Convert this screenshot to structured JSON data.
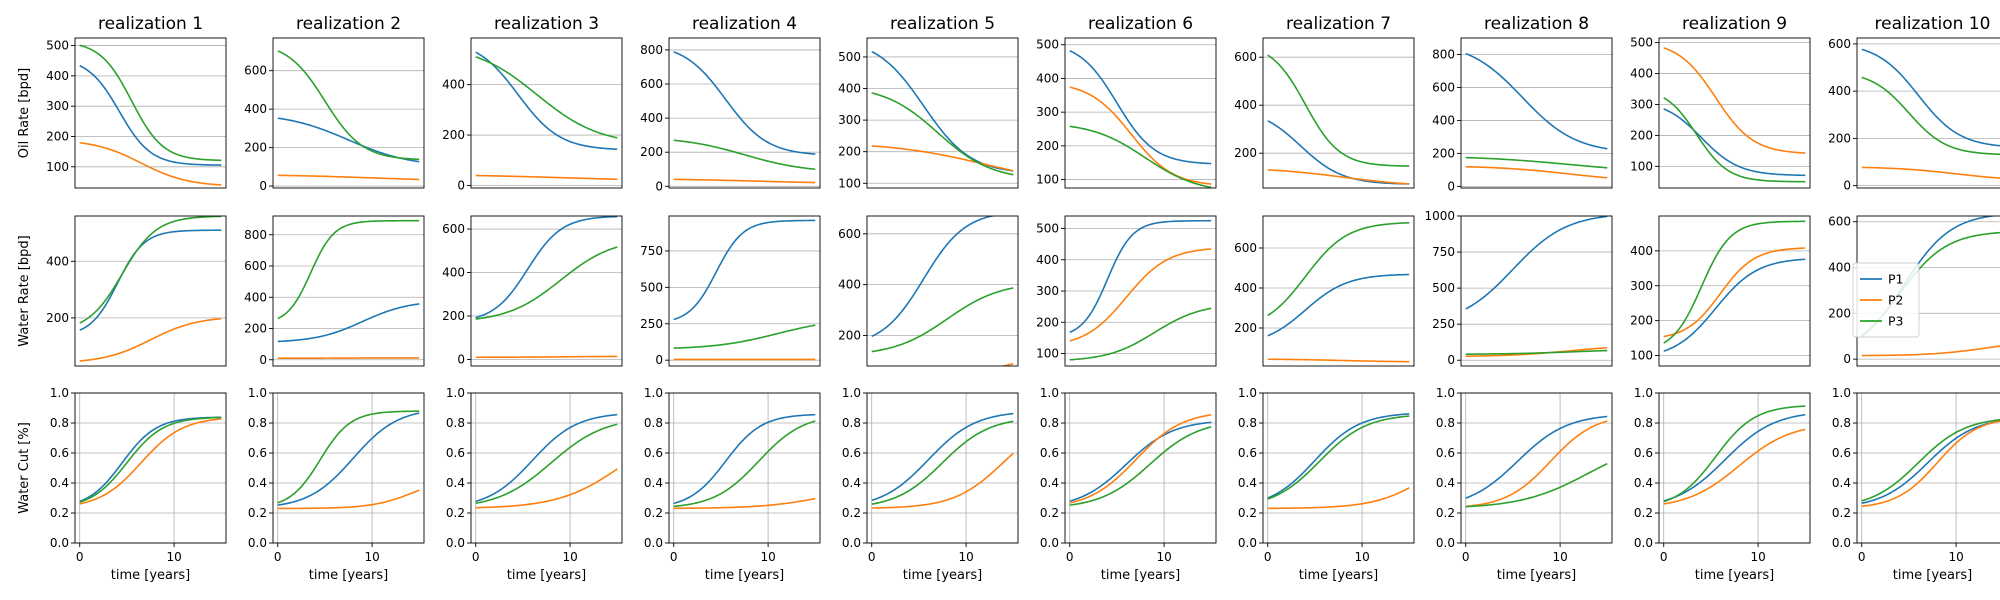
{
  "chart_data": {
    "type": "line",
    "layout": "3 rows x 10 columns of subplots",
    "series_names": [
      "P1",
      "P2",
      "P3"
    ],
    "series_colors": {
      "P1": "#1f77b4",
      "P2": "#ff7f0e",
      "P3": "#2ca02c"
    },
    "column_titles": [
      "realization 1",
      "realization 2",
      "realization 3",
      "realization 4",
      "realization 5",
      "realization 6",
      "realization 7",
      "realization 8",
      "realization 9",
      "realization 10"
    ],
    "row_ylabels": [
      "Oil Rate [bpd]",
      "Water Rate [bpd]",
      "Water Cut [%]"
    ],
    "xlabel": "time [years]",
    "xlim": [
      -0.5,
      15.5
    ],
    "xticks": [
      0,
      10
    ],
    "grid": "horizontal gridlines on rows 1-2, full grid on row 3",
    "legend": {
      "location": "inside realization 10, water rate panel, center-left",
      "entries": [
        "P1",
        "P2",
        "P3"
      ]
    },
    "curve_param_format": "logistic curves [start_value, end_value, midpoint_year, steepness] evaluated on x = 0..15",
    "oil_rate": {
      "ylims": [
        [
          30,
          525
        ],
        [
          -10,
          770
        ],
        [
          -10,
          585
        ],
        [
          -10,
          870
        ],
        [
          85,
          560
        ],
        [
          75,
          520
        ],
        [
          55,
          680
        ],
        [
          -10,
          900
        ],
        [
          30,
          515
        ],
        [
          -10,
          625
        ]
      ],
      "yticks": [
        [
          100,
          200,
          300,
          400,
          500
        ],
        [
          0,
          200,
          400,
          600
        ],
        [
          0,
          200,
          400
        ],
        [
          0,
          200,
          400,
          600,
          800
        ],
        [
          100,
          200,
          300,
          400,
          500
        ],
        [
          100,
          200,
          300,
          400,
          500
        ],
        [
          200,
          400,
          600
        ],
        [
          0,
          200,
          400,
          600,
          800
        ],
        [
          100,
          200,
          300,
          400,
          500
        ],
        [
          0,
          200,
          400,
          600
        ]
      ],
      "curves": [
        {
          "P1": [
            460,
            105,
            4.2,
            0.6
          ],
          "P2": [
            190,
            35,
            6.5,
            0.4
          ],
          "P3": [
            515,
            120,
            5.5,
            0.6
          ]
        },
        {
          "P1": [
            380,
            100,
            7.5,
            0.3
          ],
          "P2": [
            60,
            25,
            10,
            0.2
          ],
          "P3": [
            750,
            135,
            5,
            0.5
          ]
        },
        {
          "P1": [
            580,
            140,
            4.5,
            0.45
          ],
          "P2": [
            45,
            15,
            10,
            0.15
          ],
          "P3": [
            560,
            160,
            6.5,
            0.3
          ]
        },
        {
          "P1": [
            840,
            180,
            5.5,
            0.45
          ],
          "P2": [
            45,
            15,
            9,
            0.2
          ],
          "P3": [
            290,
            80,
            7.5,
            0.3
          ]
        },
        {
          "P1": [
            560,
            130,
            5.5,
            0.4
          ],
          "P2": [
            230,
            90,
            12,
            0.2
          ],
          "P3": [
            410,
            110,
            7,
            0.35
          ]
        },
        {
          "P1": [
            510,
            145,
            5,
            0.5
          ],
          "P2": [
            390,
            80,
            6.5,
            0.45
          ],
          "P3": [
            270,
            60,
            8,
            0.35
          ]
        },
        {
          "P1": [
            390,
            70,
            3.5,
            0.45
          ],
          "P2": [
            140,
            60,
            8,
            0.25
          ],
          "P3": [
            660,
            145,
            4,
            0.55
          ]
        },
        {
          "P1": [
            880,
            200,
            6,
            0.35
          ],
          "P2": [
            125,
            25,
            11,
            0.25
          ],
          "P3": [
            185,
            80,
            11,
            0.2
          ]
        },
        {
          "P1": [
            315,
            70,
            4,
            0.5
          ],
          "P2": [
            505,
            140,
            5.5,
            0.5
          ],
          "P3": [
            355,
            50,
            3.5,
            0.6
          ]
        },
        {
          "P1": [
            605,
            160,
            6,
            0.45
          ],
          "P2": [
            80,
            20,
            10,
            0.3
          ],
          "P3": [
            485,
            130,
            5,
            0.5
          ]
        }
      ]
    },
    "water_rate": {
      "ylims": [
        [
          30,
          560
        ],
        [
          -40,
          920
        ],
        [
          -30,
          660
        ],
        [
          -40,
          990
        ],
        [
          80,
          670
        ],
        [
          60,
          540
        ],
        [
          10,
          760
        ],
        [
          -40,
          1000
        ],
        [
          70,
          500
        ],
        [
          -30,
          625
        ]
      ],
      "yticks": [
        [
          200,
          400
        ],
        [
          0,
          200,
          400,
          600,
          800
        ],
        [
          0,
          200,
          400,
          600
        ],
        [
          0,
          250,
          500,
          750
        ],
        [
          200,
          400,
          600
        ],
        [
          100,
          200,
          300,
          400,
          500
        ],
        [
          200,
          400,
          600
        ],
        [
          0,
          250,
          500,
          750,
          1000
        ],
        [
          100,
          200,
          300,
          400
        ],
        [
          0,
          200,
          400,
          600
        ]
      ],
      "curves": [
        {
          "P1": [
            135,
            510,
            4,
            0.7
          ],
          "P2": [
            40,
            205,
            7.5,
            0.4
          ],
          "P3": [
            150,
            560,
            4.5,
            0.55
          ]
        },
        {
          "P1": [
            110,
            380,
            9,
            0.4
          ],
          "P2": [
            10,
            12,
            8,
            0.5
          ],
          "P3": [
            225,
            890,
            3.5,
            0.8
          ]
        },
        {
          "P1": [
            170,
            660,
            5.5,
            0.55
          ],
          "P2": [
            10,
            15,
            10,
            0.3
          ],
          "P3": [
            170,
            560,
            9,
            0.35
          ]
        },
        {
          "P1": [
            250,
            960,
            4.5,
            0.7
          ],
          "P2": [
            5,
            5,
            8,
            0.3
          ],
          "P3": [
            75,
            290,
            11,
            0.3
          ]
        },
        {
          "P1": [
            155,
            690,
            5.5,
            0.45
          ],
          "P2": [
            40,
            120,
            14,
            0.45
          ],
          "P3": [
            120,
            410,
            8,
            0.35
          ]
        },
        {
          "P1": [
            150,
            525,
            4,
            0.75
          ],
          "P2": [
            120,
            440,
            6,
            0.45
          ],
          "P3": [
            75,
            260,
            9,
            0.4
          ]
        },
        {
          "P1": [
            110,
            470,
            4,
            0.45
          ],
          "P2": [
            45,
            30,
            8,
            0.3
          ],
          "P3": [
            185,
            730,
            4,
            0.45
          ]
        },
        {
          "P1": [
            240,
            1020,
            5,
            0.35
          ],
          "P2": [
            25,
            105,
            11,
            0.3
          ],
          "P3": [
            40,
            80,
            12,
            0.25
          ]
        },
        {
          "P1": [
            90,
            380,
            5.5,
            0.45
          ],
          "P2": [
            145,
            410,
            6,
            0.55
          ],
          "P3": [
            110,
            485,
            4,
            0.65
          ]
        },
        {
          "P1": [
            10,
            640,
            4.5,
            0.4
          ],
          "P2": [
            15,
            80,
            13,
            0.35
          ],
          "P3": [
            10,
            560,
            4,
            0.4
          ]
        }
      ]
    },
    "water_cut": {
      "ylim": [
        0,
        1.0
      ],
      "yticks": [
        0.0,
        0.2,
        0.4,
        0.6,
        0.8,
        1.0
      ],
      "curves": [
        {
          "P1": [
            0.23,
            0.84,
            4.5,
            0.55
          ],
          "P2": [
            0.23,
            0.84,
            6.5,
            0.45
          ],
          "P3": [
            0.23,
            0.84,
            5.0,
            0.52
          ]
        },
        {
          "P1": [
            0.23,
            0.9,
            8.0,
            0.42
          ],
          "P2": [
            0.23,
            0.45,
            14.5,
            0.45
          ],
          "P3": [
            0.23,
            0.88,
            4.5,
            0.62
          ]
        },
        {
          "P1": [
            0.23,
            0.87,
            6.0,
            0.42
          ],
          "P2": [
            0.23,
            0.8,
            15.5,
            0.3
          ],
          "P3": [
            0.23,
            0.84,
            8.0,
            0.35
          ]
        },
        {
          "P1": [
            0.23,
            0.86,
            5.5,
            0.52
          ],
          "P2": [
            0.23,
            0.4,
            16.5,
            0.3
          ],
          "P3": [
            0.23,
            0.86,
            9.0,
            0.42
          ]
        },
        {
          "P1": [
            0.23,
            0.88,
            6.0,
            0.4
          ],
          "P2": [
            0.23,
            0.85,
            14.0,
            0.38
          ],
          "P3": [
            0.23,
            0.84,
            7.5,
            0.4
          ]
        },
        {
          "P1": [
            0.23,
            0.82,
            6.0,
            0.4
          ],
          "P2": [
            0.23,
            0.88,
            7.0,
            0.4
          ],
          "P3": [
            0.23,
            0.82,
            8.5,
            0.38
          ]
        },
        {
          "P1": [
            0.23,
            0.87,
            5.0,
            0.42
          ],
          "P2": [
            0.23,
            0.7,
            17.5,
            0.35
          ],
          "P3": [
            0.23,
            0.86,
            5.5,
            0.4
          ]
        },
        {
          "P1": [
            0.23,
            0.86,
            5.5,
            0.38
          ],
          "P2": [
            0.23,
            0.86,
            9.0,
            0.42
          ],
          "P3": [
            0.23,
            0.7,
            13.0,
            0.28
          ]
        },
        {
          "P1": [
            0.23,
            0.88,
            6.5,
            0.38
          ],
          "P2": [
            0.23,
            0.8,
            8.0,
            0.36
          ],
          "P3": [
            0.23,
            0.92,
            5.5,
            0.48
          ]
        },
        {
          "P1": [
            0.23,
            0.84,
            7.0,
            0.4
          ],
          "P2": [
            0.23,
            0.84,
            8.0,
            0.46
          ],
          "P3": [
            0.23,
            0.84,
            6.0,
            0.4
          ]
        }
      ]
    }
  }
}
